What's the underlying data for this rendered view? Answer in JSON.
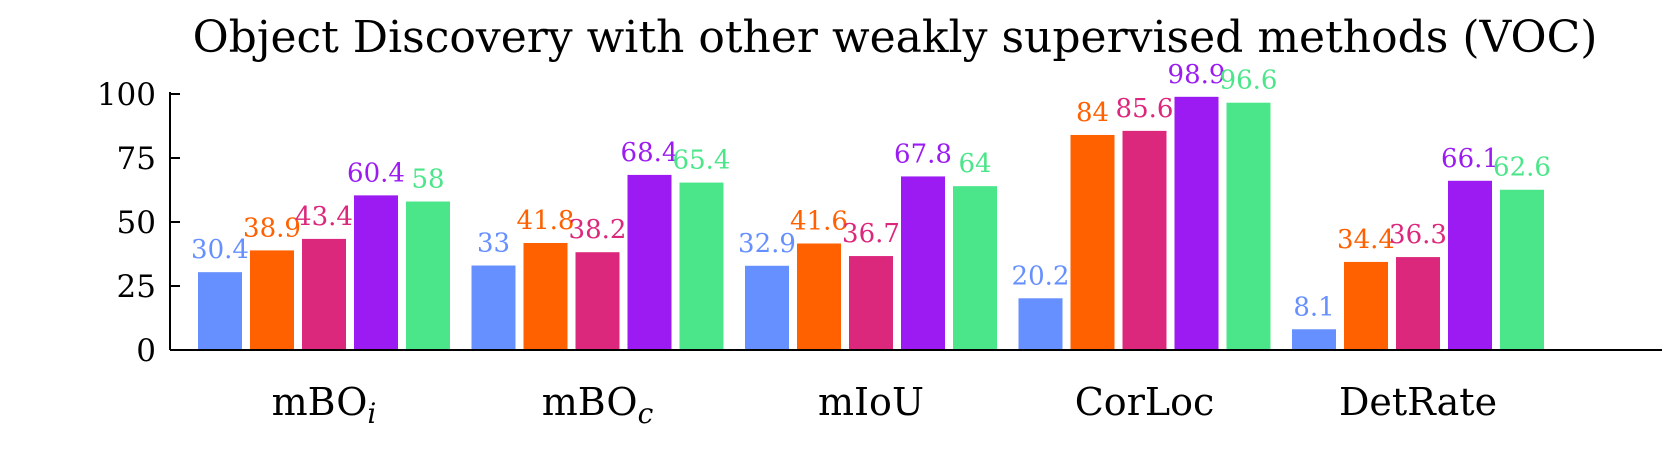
{
  "chart_data": {
    "type": "bar",
    "title": "Object Discovery with other weakly supervised methods (VOC)",
    "xlabel": "",
    "ylabel": "",
    "ylim": [
      0,
      100
    ],
    "yticks": [
      0,
      25,
      50,
      75,
      100
    ],
    "categories": [
      {
        "label": "mBO",
        "subscript": "i"
      },
      {
        "label": "mBO",
        "subscript": "c"
      },
      {
        "label": "mIoU",
        "subscript": ""
      },
      {
        "label": "CorLoc",
        "subscript": ""
      },
      {
        "label": "DetRate",
        "subscript": ""
      }
    ],
    "series": [
      {
        "color": "#6690ff",
        "values": [
          30.4,
          33,
          32.9,
          20.2,
          8.1
        ]
      },
      {
        "color": "#ff6000",
        "values": [
          38.9,
          41.8,
          41.6,
          84,
          34.4
        ]
      },
      {
        "color": "#dc287c",
        "values": [
          43.4,
          38.2,
          36.7,
          85.6,
          36.3
        ]
      },
      {
        "color": "#9b1bf2",
        "values": [
          60.4,
          68.4,
          67.8,
          98.9,
          66.1
        ]
      },
      {
        "color": "#4ce68a",
        "values": [
          58,
          65.4,
          64,
          96.6,
          62.6
        ]
      }
    ],
    "grid": false,
    "legend": "none"
  }
}
